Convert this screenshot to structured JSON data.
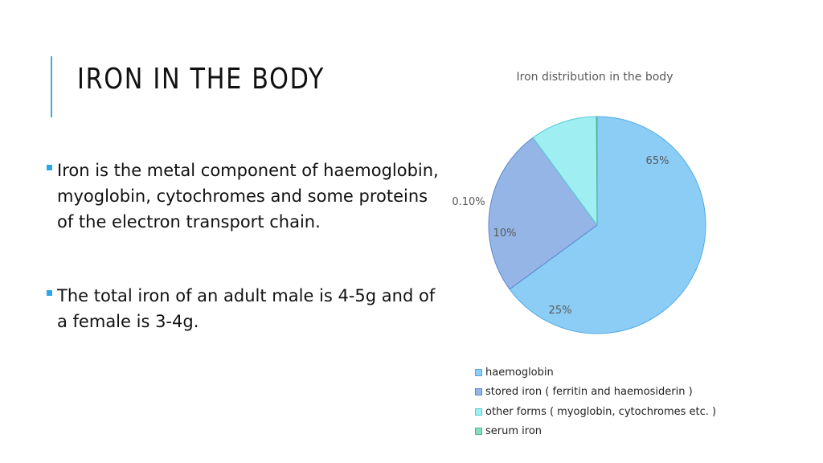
{
  "slide": {
    "title": "IRON IN THE BODY",
    "bullets": [
      "Iron is the metal component of haemoglobin, myoglobin, cytochromes and some proteins of the electron transport chain.",
      "The total iron of an adult male is 4-5g and of a female is 3-4g."
    ],
    "accent_color": "#3fa9e0"
  },
  "chart_data": {
    "type": "pie",
    "title": "Iron distribution in the body",
    "legend_position": "bottom",
    "start_angle_deg": 90,
    "direction": "clockwise",
    "slices": [
      {
        "label": "haemoglobin",
        "value": 65,
        "data_label": "65%",
        "color": "#8ccdf6",
        "edge": "#52a9e6"
      },
      {
        "label": "stored iron ( ferritin and haemosiderin )",
        "value": 25,
        "data_label": "25%",
        "color": "#94b5e6",
        "edge": "#5b86cf"
      },
      {
        "label": "other forms ( myoglobin, cytochromes etc. )",
        "value": 10,
        "data_label": "10%",
        "color": "#9eeef2",
        "edge": "#55cbd6"
      },
      {
        "label": "serum iron",
        "value": 0.1,
        "data_label": "0.10%",
        "color": "#86dcc0",
        "edge": "#44b895"
      }
    ]
  }
}
